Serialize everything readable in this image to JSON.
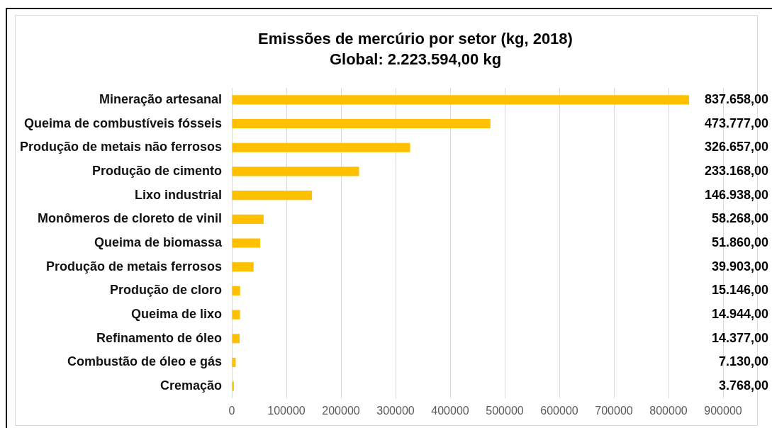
{
  "chart_data": {
    "type": "bar",
    "orientation": "horizontal",
    "title": "Emissões de mercúrio por setor (kg, 2018)",
    "subtitle": "Global: 2.223.594,00 kg",
    "categories": [
      "Mineração artesanal",
      "Queima de combustíveis fósseis",
      "Produção de metais não ferrosos",
      "Produção de cimento",
      "Lixo industrial",
      "Monômeros de cloreto de vinil",
      "Queima de biomassa",
      "Produção de metais ferrosos",
      "Produção de cloro",
      "Queima de lixo",
      "Refinamento de óleo",
      "Combustão de óleo e gás",
      "Cremação"
    ],
    "values": [
      837658,
      473777,
      326657,
      233168,
      146938,
      58268,
      51860,
      39903,
      15146,
      14944,
      14377,
      7130,
      3768
    ],
    "value_labels": [
      "837.658,00",
      "473.777,00",
      "326.657,00",
      "233.168,00",
      "146.938,00",
      "58.268,00",
      "51.860,00",
      "39.903,00",
      "15.146,00",
      "14.944,00",
      "14.377,00",
      "7.130,00",
      "3.768,00"
    ],
    "color": "#ffc000",
    "xlim": [
      0,
      900000
    ],
    "xticks": [
      0,
      100000,
      200000,
      300000,
      400000,
      500000,
      600000,
      700000,
      800000,
      900000
    ],
    "grid": "x"
  }
}
